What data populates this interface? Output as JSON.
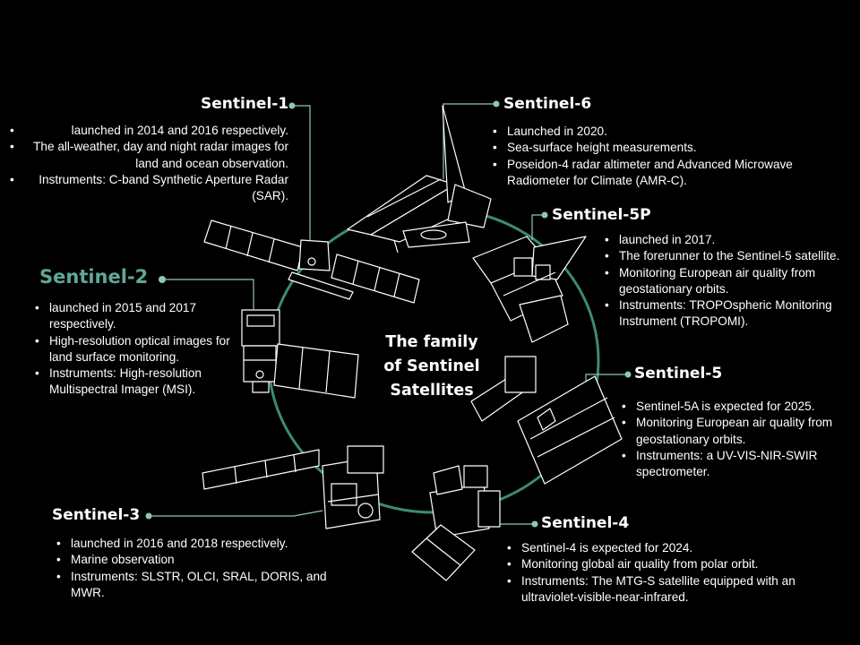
{
  "diagram": {
    "center_title": [
      "The family",
      "of Sentinel",
      "Satellites"
    ],
    "accent_color": "#3d8a78",
    "satellites": [
      {
        "id": "s1",
        "name": "Sentinel-1",
        "bullets": [
          "launched in 2014 and 2016 respectively.",
          "The all-weather, day and night radar images for land and ocean observation.",
          "Instruments: C-band Synthetic Aperture Radar (SAR)."
        ]
      },
      {
        "id": "s2",
        "name": "Sentinel-2",
        "bullets": [
          "launched in 2015 and 2017 respectively.",
          "High-resolution optical images for land surface monitoring.",
          "Instruments: High-resolution Multispectral Imager (MSI)."
        ]
      },
      {
        "id": "s3",
        "name": "Sentinel-3",
        "bullets": [
          "launched in 2016 and 2018 respectively.",
          "Marine observation",
          "Instruments: SLSTR, OLCI, SRAL, DORIS, and MWR."
        ]
      },
      {
        "id": "s4",
        "name": "Sentinel-4",
        "bullets": [
          "Sentinel-4 is expected for 2024.",
          "Monitoring global air quality from polar orbit.",
          "Instruments: The MTG-S satellite equipped with an ultraviolet-visible-near-infrared."
        ]
      },
      {
        "id": "s5",
        "name": "Sentinel-5",
        "bullets": [
          "Sentinel-5A is expected for 2025.",
          "Monitoring European air quality from geostationary orbits.",
          "Instruments: a UV-VIS-NIR-SWIR spectrometer."
        ]
      },
      {
        "id": "s5p",
        "name": "Sentinel-5P",
        "bullets": [
          "launched in 2017.",
          "The forerunner to the Sentinel-5 satellite.",
          "Monitoring European air quality from geostationary orbits.",
          "Instruments: TROPOspheric Monitoring Instrument (TROPOMI)."
        ]
      },
      {
        "id": "s6",
        "name": "Sentinel-6",
        "bullets": [
          "Launched in 2020.",
          "Sea-surface height measurements.",
          "Poseidon-4 radar altimeter and Advanced Microwave Radiometer for Climate (AMR-C)."
        ]
      }
    ]
  }
}
